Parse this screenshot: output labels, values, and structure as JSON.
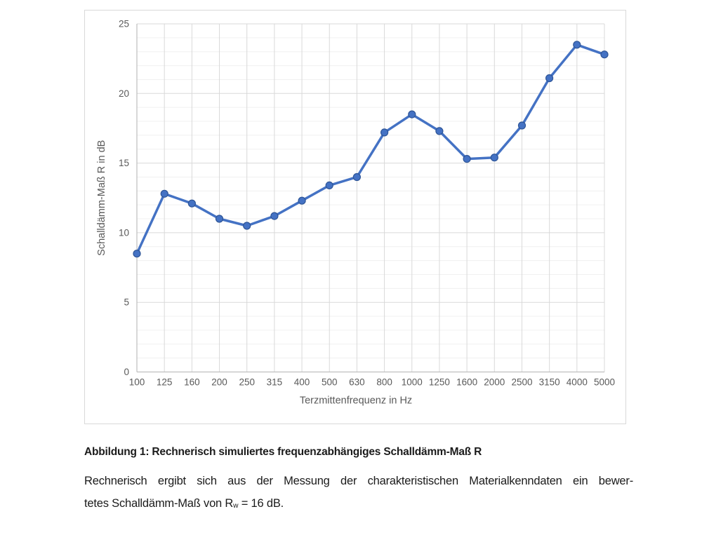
{
  "chart_data": {
    "type": "line",
    "title": "",
    "categories": [
      "100",
      "125",
      "160",
      "200",
      "250",
      "315",
      "400",
      "500",
      "630",
      "800",
      "1000",
      "1250",
      "1600",
      "2000",
      "2500",
      "3150",
      "4000",
      "5000"
    ],
    "series": [
      {
        "name": "Schalldämm-Maß R",
        "values": [
          8.5,
          12.8,
          12.1,
          11.0,
          10.5,
          11.2,
          12.3,
          13.4,
          14.0,
          17.2,
          18.5,
          17.3,
          15.3,
          15.4,
          17.7,
          21.1,
          23.5,
          22.8
        ],
        "line_color": "#4472C4",
        "marker_color": "#4472C4",
        "marker_edge_color": "#2E5597"
      }
    ],
    "xlabel": "Terzmittenfrequenz in Hz",
    "ylabel": "Schalldämm-Maß R in dB",
    "ylim": [
      0,
      25
    ],
    "y_major_step": 5,
    "y_minor_step": 1,
    "y_tick_labels": [
      "0",
      "5",
      "10",
      "15",
      "20",
      "25"
    ],
    "legend_position": "none",
    "grid": {
      "major_on": true,
      "minor_on": true,
      "major_color": "#D9D9D9",
      "minor_color": "#F0F0F0",
      "axis_color": "#BFBFBF"
    },
    "tick_label_color": "#595959",
    "axis_title_color": "#595959",
    "chart_border_color": "#D9D9D9",
    "background": "#FFFFFF"
  },
  "figure": {
    "caption_title": "Abbildung 1: Rechnerisch simuliertes frequenzabhängiges Schalldämm-Maß R",
    "body_line1": "Rechnerisch ergibt sich aus der Messung der charakteristischen Materialkenndaten ein bewer-",
    "body_line2_pre": "tetes Schalldämm-Maß von R",
    "body_line2_sub": "w",
    "body_line2_post": " = 16 dB."
  }
}
